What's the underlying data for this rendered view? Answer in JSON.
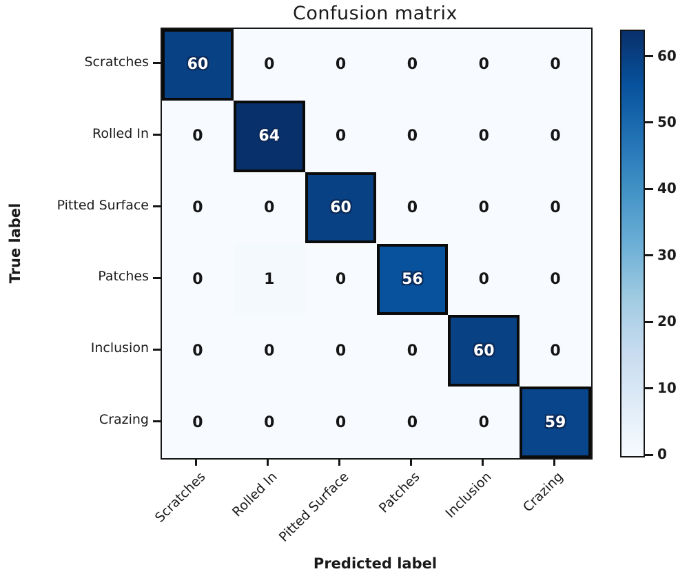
{
  "title": "Confusion matrix",
  "chart_data": {
    "type": "heatmap",
    "title": "Confusion matrix",
    "xlabel": "Predicted label",
    "ylabel": "True label",
    "x_categories": [
      "Scratches",
      "Rolled In",
      "Pitted Surface",
      "Patches",
      "Inclusion",
      "Crazing"
    ],
    "y_categories": [
      "Scratches",
      "Rolled In",
      "Pitted Surface",
      "Patches",
      "Inclusion",
      "Crazing"
    ],
    "matrix": [
      [
        60,
        0,
        0,
        0,
        0,
        0
      ],
      [
        0,
        64,
        0,
        0,
        0,
        0
      ],
      [
        0,
        0,
        60,
        0,
        0,
        0
      ],
      [
        0,
        1,
        0,
        56,
        0,
        0
      ],
      [
        0,
        0,
        0,
        0,
        60,
        0
      ],
      [
        0,
        0,
        0,
        0,
        0,
        59
      ]
    ],
    "diagonal_highlighted": true,
    "vmin": 0,
    "vmax": 64,
    "colorbar_ticks": [
      0,
      10,
      20,
      30,
      40,
      50,
      60
    ],
    "colormap": "Blues",
    "colormap_stops": [
      "#f7fbff",
      "#deebf7",
      "#c6dbef",
      "#9ecae1",
      "#6baed6",
      "#4292c6",
      "#2171b5",
      "#08519c",
      "#08306b"
    ],
    "grid": false,
    "legend": "colorbar-right"
  },
  "colors": {
    "background": "#ffffff",
    "cell_min": "#f7fbff",
    "cell_max": "#08306b",
    "border": "#151515",
    "text": "#1a1a1a"
  }
}
